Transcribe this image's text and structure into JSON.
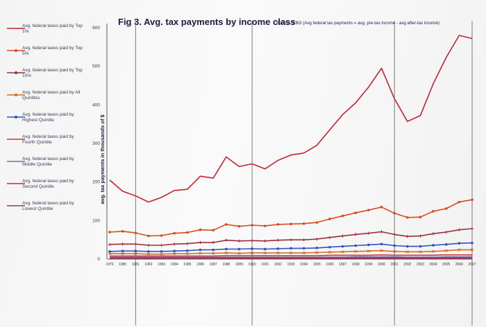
{
  "chart_data": {
    "type": "line",
    "title": "Fig 3. Avg. tax payments by income class",
    "source_note": "Source: CBO (Avg federal tax payments = avg. pre-tax income - avg after-tax income)",
    "ylabel": "avg. tax payments in thousands of $",
    "ylim": [
      0,
      600
    ],
    "yticks": [
      0,
      100,
      200,
      300,
      400,
      500,
      600
    ],
    "ytick_labels": [
      "0",
      "100",
      "200",
      "300",
      "400",
      "500",
      "600"
    ],
    "x": [
      1979,
      1980,
      1981,
      1982,
      1983,
      1984,
      1985,
      1986,
      1987,
      1988,
      1989,
      1990,
      1991,
      1992,
      1993,
      1994,
      1995,
      1996,
      1997,
      1998,
      1999,
      2000,
      2001,
      2002,
      2003,
      2004,
      2005,
      2006,
      2007
    ],
    "xtick_labels": [
      "1979",
      "1980",
      "1981",
      "1982",
      "1983",
      "1984",
      "1985",
      "1986",
      "1987",
      "1988",
      "1989",
      "1990",
      "1991",
      "1992",
      "1993",
      "1994",
      "1995",
      "1996",
      "1997",
      "1998",
      "1999",
      "2000",
      "2001",
      "2002",
      "2003",
      "2004",
      "2005",
      "2006",
      "2007"
    ],
    "series": [
      {
        "name": "Avg. federal taxes paid by Top 1%",
        "color": "#c8202f",
        "marker": "none",
        "values": [
          205,
          176,
          164,
          148,
          160,
          178,
          181,
          215,
          210,
          265,
          240,
          247,
          234,
          256,
          270,
          275,
          295,
          335,
          375,
          405,
          446,
          495,
          416,
          357,
          372,
          455,
          523,
          580,
          572
        ]
      },
      {
        "name": "Avg. federal taxes paid by Top 5%",
        "color": "#d84a1c",
        "marker": "dot",
        "values": [
          70,
          72,
          68,
          60,
          61,
          67,
          69,
          76,
          75,
          90,
          85,
          88,
          86,
          90,
          91,
          92,
          95,
          104,
          112,
          120,
          127,
          135,
          119,
          108,
          109,
          124,
          131,
          148,
          154
        ]
      },
      {
        "name": "Avg. federal taxes paid by Top 10%",
        "color": "#9e2a36",
        "marker": "plus",
        "values": [
          38,
          39,
          39,
          36,
          36,
          39,
          40,
          43,
          43,
          49,
          47,
          48,
          47,
          49,
          50,
          50,
          52,
          56,
          60,
          64,
          67,
          71,
          64,
          59,
          60,
          66,
          70,
          76,
          79
        ]
      },
      {
        "name": "Avg. federal taxes paid by All Quintiles",
        "color": "#d46a28",
        "marker": "cross",
        "values": [
          14,
          14,
          14,
          13,
          13,
          14,
          14,
          15,
          15,
          16,
          15,
          16,
          16,
          16,
          16,
          16,
          17,
          18,
          19,
          20,
          21,
          22,
          20,
          19,
          19,
          20,
          22,
          24,
          24
        ]
      },
      {
        "name": "Avg. federal taxes paid by Highest Quintile",
        "color": "#2f4fc4",
        "marker": "dot",
        "values": [
          20,
          21,
          21,
          20,
          20,
          21,
          22,
          24,
          24,
          26,
          26,
          27,
          26,
          27,
          28,
          28,
          29,
          31,
          33,
          35,
          37,
          39,
          35,
          33,
          33,
          36,
          38,
          41,
          42
        ]
      },
      {
        "name": "Avg. federal taxes paid by Fourth Quintile",
        "color": "#c4342c",
        "marker": "none",
        "values": [
          8,
          8,
          8,
          8,
          8,
          8,
          8,
          8,
          8,
          9,
          9,
          9,
          9,
          9,
          9,
          9,
          9,
          10,
          10,
          10,
          10,
          11,
          10,
          10,
          10,
          10,
          11,
          11,
          11
        ]
      },
      {
        "name": "Avg. federal taxes paid by Middle Quintile",
        "color": "#7a6aa8",
        "marker": "none",
        "values": [
          5,
          5,
          5,
          5,
          5,
          5,
          5,
          5,
          5,
          5,
          5,
          5,
          5,
          5,
          5,
          5,
          5,
          5,
          5,
          6,
          6,
          6,
          6,
          5,
          5,
          5,
          6,
          6,
          6
        ]
      },
      {
        "name": "Avg. federal taxes paid by Second Quintile",
        "color": "#b03050",
        "marker": "none",
        "values": [
          3,
          3,
          3,
          3,
          3,
          3,
          3,
          3,
          3,
          3,
          3,
          3,
          3,
          3,
          3,
          3,
          3,
          3,
          3,
          3,
          3,
          3,
          3,
          3,
          3,
          3,
          3,
          3,
          3
        ]
      },
      {
        "name": "Avg. federal taxes paid by Lowest Quintile",
        "color": "#8a3a5a",
        "marker": "none",
        "values": [
          1,
          1,
          1,
          1,
          1,
          1,
          1,
          1,
          1,
          1,
          1,
          1,
          1,
          1,
          1,
          1,
          1,
          1,
          1,
          1,
          1,
          1,
          1,
          1,
          1,
          1,
          1,
          1,
          1
        ]
      }
    ],
    "legend_labels": [
      "Avg. federal taxes paid by Top 1%",
      "Avg. federal taxes paid by Top 5%",
      "Avg. federal taxes paid by Top 10%",
      "Avg. federal taxes paid by All Quintiles",
      "Avg. federal taxes paid by Highest Quintile",
      "Avg. federal taxes paid by Fourth Quintile",
      "Avg. federal taxes paid by Middle Quintile",
      "Avg. federal taxes paid by Second Quintile",
      "Avg. federal taxes paid by Lowest Quintile"
    ],
    "legend_placement": "left",
    "grid": "vertical-lines",
    "vertical_reference_years": [
      1981,
      1990,
      2001,
      2007
    ]
  }
}
